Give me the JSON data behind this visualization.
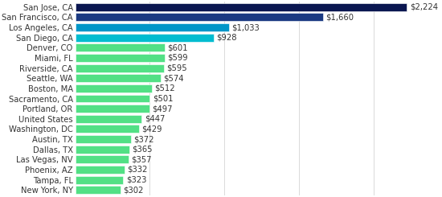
{
  "categories": [
    "New York, NY",
    "Tampa, FL",
    "Phoenix, AZ",
    "Las Vegas, NV",
    "Dallas, TX",
    "Austin, TX",
    "Washington, DC",
    "United States",
    "Portland, OR",
    "Sacramento, CA",
    "Boston, MA",
    "Seattle, WA",
    "Riverside, CA",
    "Miami, FL",
    "Denver, CO",
    "San Diego, CA",
    "Los Angeles, CA",
    "San Francisco, CA",
    "San Jose, CA"
  ],
  "values": [
    302,
    323,
    332,
    357,
    365,
    372,
    429,
    447,
    497,
    501,
    512,
    574,
    595,
    599,
    601,
    928,
    1033,
    1660,
    2224
  ],
  "bar_colors": [
    "#52e085",
    "#52e085",
    "#52e085",
    "#52e085",
    "#52e085",
    "#52e085",
    "#52e085",
    "#52e085",
    "#52e085",
    "#52e085",
    "#52e085",
    "#52e085",
    "#52e085",
    "#52e085",
    "#52e085",
    "#00bcd0",
    "#0096c8",
    "#1b3a82",
    "#0a1650"
  ],
  "value_labels": [
    "$302",
    "$323",
    "$332",
    "$357",
    "$365",
    "$372",
    "$429",
    "$447",
    "$497",
    "$501",
    "$512",
    "$574",
    "$595",
    "$599",
    "$601",
    "$928",
    "$1,033",
    "$1,660",
    "$2,224"
  ],
  "xlim": [
    0,
    2400
  ],
  "background_color": "#ffffff",
  "label_fontsize": 7.2,
  "bar_height": 0.78,
  "grid_lines": [
    500,
    1000,
    1500,
    2000
  ]
}
